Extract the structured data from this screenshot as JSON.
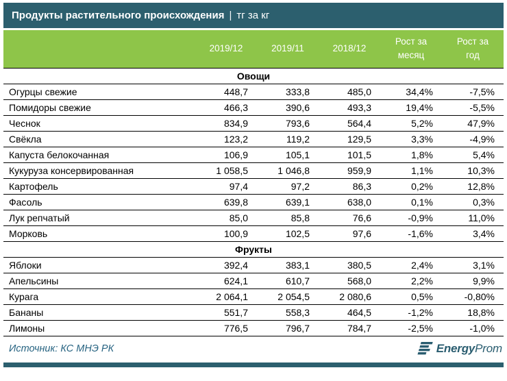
{
  "header": {
    "title_main": "Продукты растительного происхождения",
    "title_sep": "|",
    "title_unit": "тг за кг"
  },
  "chart_data": {
    "type": "table",
    "title": "Продукты растительного происхождения | тг за кг",
    "columns": [
      "2019/12",
      "2019/11",
      "2018/12",
      "Рост за\nмесяц",
      "Рост за\nгод"
    ],
    "sections": [
      {
        "name": "Овощи",
        "rows": [
          {
            "label": "Огурцы свежие",
            "values": [
              "448,7",
              "333,8",
              "485,0",
              "34,4%",
              "-7,5%"
            ]
          },
          {
            "label": "Помидоры свежие",
            "values": [
              "466,3",
              "390,6",
              "493,3",
              "19,4%",
              "-5,5%"
            ]
          },
          {
            "label": "Чеснок",
            "values": [
              "834,9",
              "793,6",
              "564,4",
              "5,2%",
              "47,9%"
            ]
          },
          {
            "label": "Свёкла",
            "values": [
              "123,2",
              "119,2",
              "129,5",
              "3,3%",
              "-4,9%"
            ]
          },
          {
            "label": "Капуста белокочанная",
            "values": [
              "106,9",
              "105,1",
              "101,5",
              "1,8%",
              "5,4%"
            ]
          },
          {
            "label": "Кукуруза консервированная",
            "values": [
              "1 058,5",
              "1 046,8",
              "959,9",
              "1,1%",
              "10,3%"
            ]
          },
          {
            "label": "Картофель",
            "values": [
              "97,4",
              "97,2",
              "86,3",
              "0,2%",
              "12,8%"
            ]
          },
          {
            "label": "Фасоль",
            "values": [
              "639,8",
              "639,1",
              "638,0",
              "0,1%",
              "0,3%"
            ]
          },
          {
            "label": "Лук репчатый",
            "values": [
              "85,0",
              "85,8",
              "76,6",
              "-0,9%",
              "11,0%"
            ]
          },
          {
            "label": "Морковь",
            "values": [
              "100,9",
              "102,5",
              "97,6",
              "-1,6%",
              "3,4%"
            ]
          }
        ]
      },
      {
        "name": "Фрукты",
        "rows": [
          {
            "label": "Яблоки",
            "values": [
              "392,4",
              "383,1",
              "380,5",
              "2,4%",
              "3,1%"
            ]
          },
          {
            "label": "Апельсины",
            "values": [
              "624,1",
              "610,7",
              "568,0",
              "2,2%",
              "9,9%"
            ]
          },
          {
            "label": "Курага",
            "values": [
              "2 064,1",
              "2 054,5",
              "2 080,6",
              "0,5%",
              "-0,80%"
            ]
          },
          {
            "label": "Бананы",
            "values": [
              "551,7",
              "558,3",
              "464,5",
              "-1,2%",
              "18,8%"
            ]
          },
          {
            "label": "Лимоны",
            "values": [
              "776,5",
              "796,7",
              "784,7",
              "-2,5%",
              "-1,0%"
            ]
          }
        ]
      }
    ]
  },
  "footer": {
    "source": "Источник: КС МНЭ РК",
    "logo_bold": "Energy",
    "logo_light": "Prom"
  },
  "colors": {
    "teal": "#2C5F6E",
    "green": "#8EC549",
    "border": "#000000",
    "source": "#286482",
    "logo": "#2A5D70"
  }
}
